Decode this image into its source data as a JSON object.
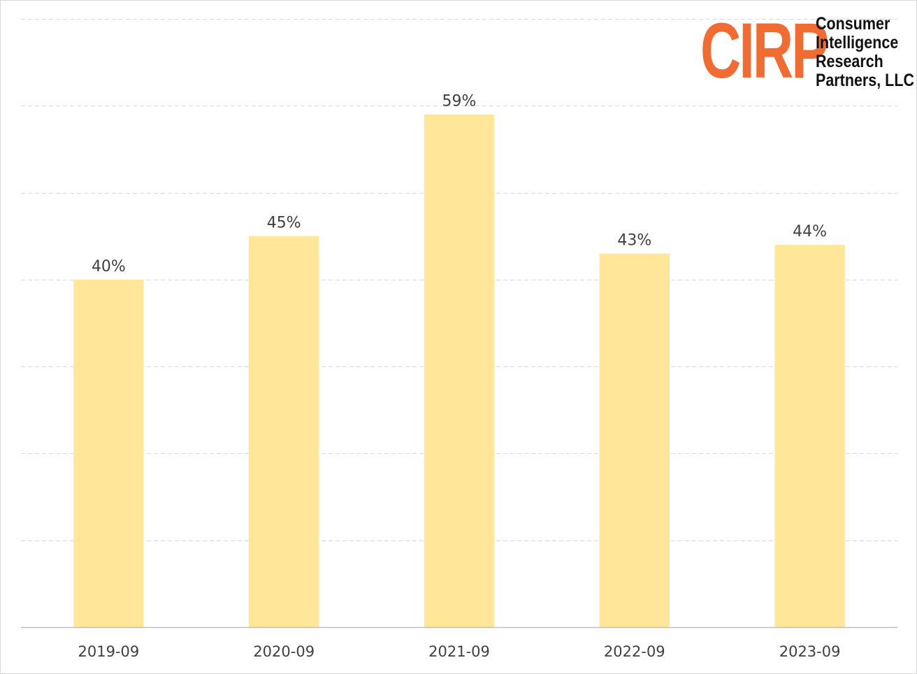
{
  "chart_data": {
    "type": "bar",
    "categories": [
      "2019-09",
      "2020-09",
      "2021-09",
      "2022-09",
      "2023-09"
    ],
    "values": [
      40,
      45,
      59,
      43,
      44
    ],
    "data_labels": [
      "40%",
      "45%",
      "59%",
      "43%",
      "44%"
    ],
    "title": "",
    "xlabel": "",
    "ylabel": "",
    "ylim": [
      0,
      70
    ],
    "grid": true,
    "bar_color": "#FFE699",
    "grid_color": "#D9D9D9",
    "axis_color": "#BFBFBF",
    "label_color": "#404040"
  },
  "logo": {
    "mark": "CIRP",
    "mark_color": "#F26B31",
    "lines": [
      "Consumer",
      "Intelligence",
      "Research",
      "Partners, LLC"
    ]
  }
}
